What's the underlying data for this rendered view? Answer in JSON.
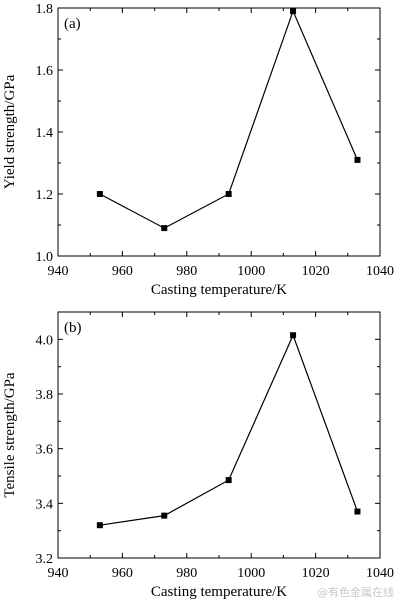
{
  "chart_data": [
    {
      "type": "line",
      "panel_label": "(a)",
      "xlabel": "Casting temperature/K",
      "ylabel": "Yield strength/GPa",
      "xlim": [
        940,
        1040
      ],
      "ylim": [
        1.0,
        1.8
      ],
      "xticks": [
        940,
        960,
        980,
        1000,
        1020,
        1040
      ],
      "yticks": [
        1.0,
        1.2,
        1.4,
        1.6,
        1.8
      ],
      "ytick_labels": [
        "1.0",
        "1.2",
        "1.4",
        "1.6",
        "1.8"
      ],
      "grid": false,
      "marker": "square",
      "series": [
        {
          "x": [
            953,
            973,
            993,
            1013,
            1033
          ],
          "y": [
            1.2,
            1.09,
            1.2,
            1.79,
            1.31
          ]
        }
      ]
    },
    {
      "type": "line",
      "panel_label": "(b)",
      "xlabel": "Casting temperature/K",
      "ylabel": "Tensile strength/GPa",
      "xlim": [
        940,
        1040
      ],
      "ylim": [
        3.2,
        4.1
      ],
      "xticks": [
        940,
        960,
        980,
        1000,
        1020,
        1040
      ],
      "yticks": [
        3.2,
        3.4,
        3.6,
        3.8,
        4.0
      ],
      "ytick_labels": [
        "3.2",
        "3.4",
        "3.6",
        "3.8",
        "4.0"
      ],
      "grid": false,
      "marker": "square",
      "series": [
        {
          "x": [
            953,
            973,
            993,
            1013,
            1033
          ],
          "y": [
            3.32,
            3.355,
            3.485,
            4.015,
            3.37
          ]
        }
      ]
    }
  ],
  "watermark": "@有色金属在线"
}
